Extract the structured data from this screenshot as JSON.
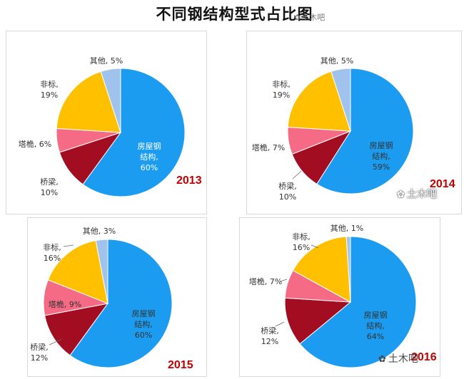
{
  "title": "不同钢结构型式占比图",
  "watermark": "土木吧",
  "colors": {
    "house": "#1b9cf0",
    "bridge": "#a30d22",
    "tower": "#f56a85",
    "nonstd": "#ffc000",
    "other": "#9fc3ec"
  },
  "chart_data": [
    {
      "type": "pie",
      "year": "2013",
      "slices": [
        {
          "key": "house",
          "label": "房屋钢结构",
          "value": 60,
          "text": [
            "房屋钢",
            "结构,",
            "60%"
          ]
        },
        {
          "key": "bridge",
          "label": "桥梁",
          "value": 10,
          "text": [
            "桥梁,",
            "10%"
          ]
        },
        {
          "key": "tower",
          "label": "塔桅",
          "value": 6,
          "text": [
            "塔桅, 6%"
          ]
        },
        {
          "key": "nonstd",
          "label": "非标",
          "value": 19,
          "text": [
            "非标,",
            "19%"
          ]
        },
        {
          "key": "other",
          "label": "其他",
          "value": 5,
          "text": [
            "其他, 5%"
          ]
        }
      ]
    },
    {
      "type": "pie",
      "year": "2014",
      "slices": [
        {
          "key": "house",
          "label": "房屋钢结构",
          "value": 59,
          "text": [
            "房屋钢",
            "结构,",
            "59%"
          ]
        },
        {
          "key": "bridge",
          "label": "桥梁",
          "value": 10,
          "text": [
            "桥梁,",
            "10%"
          ]
        },
        {
          "key": "tower",
          "label": "塔桅",
          "value": 7,
          "text": [
            "塔桅, 7%"
          ]
        },
        {
          "key": "nonstd",
          "label": "非标",
          "value": 19,
          "text": [
            "非标,",
            "19%"
          ]
        },
        {
          "key": "other",
          "label": "其他",
          "value": 5,
          "text": [
            "其他, 5%"
          ]
        }
      ]
    },
    {
      "type": "pie",
      "year": "2015",
      "slices": [
        {
          "key": "house",
          "label": "房屋钢结构",
          "value": 60,
          "text": [
            "房屋钢",
            "结构,",
            "60%"
          ]
        },
        {
          "key": "bridge",
          "label": "桥梁",
          "value": 12,
          "text": [
            "桥梁,",
            "12%"
          ]
        },
        {
          "key": "tower",
          "label": "塔桅",
          "value": 9,
          "text": [
            "塔桅, 9%"
          ]
        },
        {
          "key": "nonstd",
          "label": "非标",
          "value": 16,
          "text": [
            "非标,",
            "16%"
          ]
        },
        {
          "key": "other",
          "label": "其他",
          "value": 3,
          "text": [
            "其他, 3%"
          ]
        }
      ]
    },
    {
      "type": "pie",
      "year": "2016",
      "slices": [
        {
          "key": "house",
          "label": "房屋钢结构",
          "value": 64,
          "text": [
            "房屋钢",
            "结构,",
            "64%"
          ]
        },
        {
          "key": "bridge",
          "label": "桥梁",
          "value": 12,
          "text": [
            "桥梁,",
            "12%"
          ]
        },
        {
          "key": "tower",
          "label": "塔桅",
          "value": 7,
          "text": [
            "塔桅, 7%"
          ]
        },
        {
          "key": "nonstd",
          "label": "非标",
          "value": 16,
          "text": [
            "非标,",
            "16%"
          ]
        },
        {
          "key": "other",
          "label": "其他",
          "value": 1,
          "text": [
            "其他, 1%"
          ]
        }
      ]
    }
  ]
}
